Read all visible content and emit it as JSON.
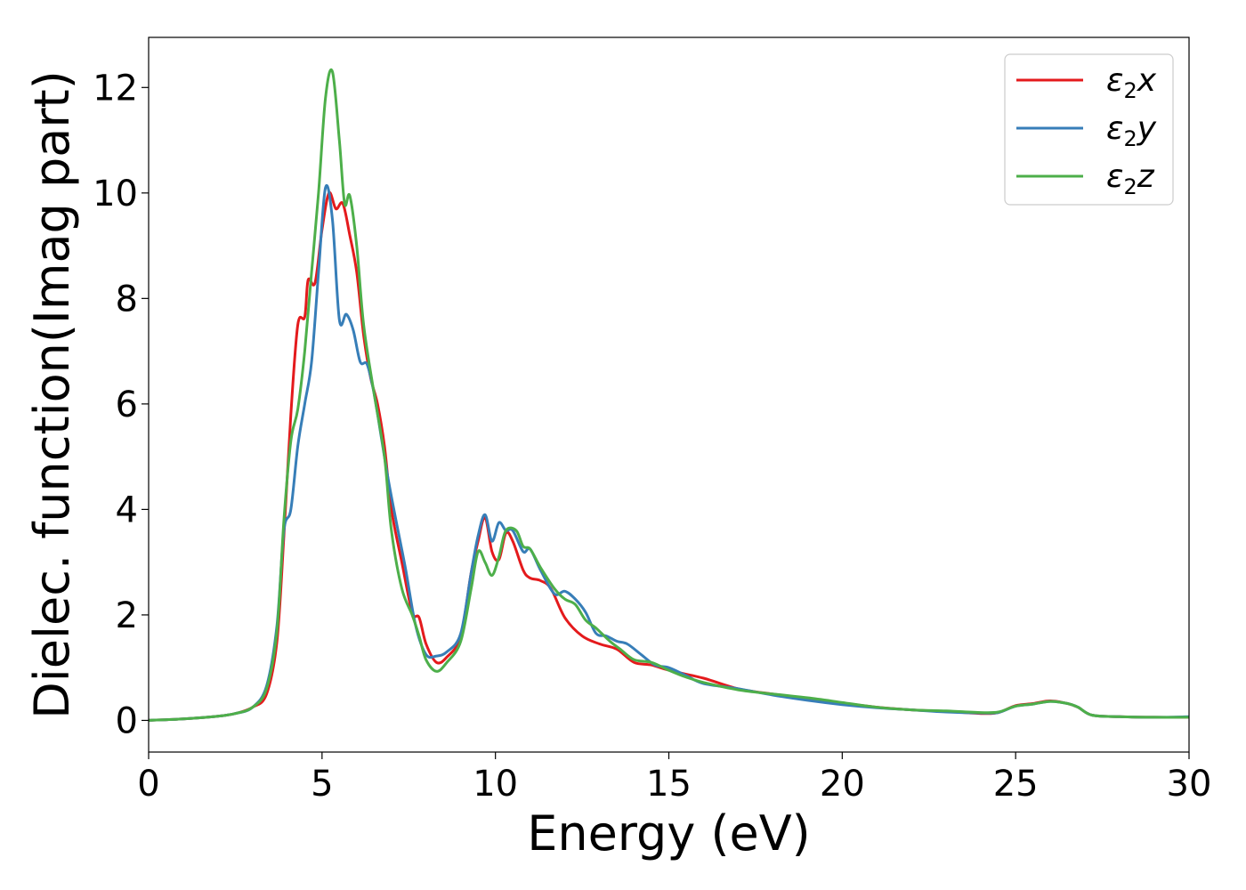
{
  "chart_data": {
    "type": "line",
    "title": "",
    "xlabel": "Energy (eV)",
    "ylabel": "Dielec. function(Imag part)",
    "xlim": [
      0,
      30
    ],
    "ylim": [
      -0.6,
      12.95
    ],
    "xticks": [
      0,
      5,
      10,
      15,
      20,
      25,
      30
    ],
    "xtick_labels": [
      "0",
      "5",
      "10",
      "15",
      "20",
      "25",
      "30"
    ],
    "yticks": [
      0,
      2,
      4,
      6,
      8,
      10,
      12
    ],
    "ytick_labels": [
      "0",
      "2",
      "4",
      "6",
      "8",
      "10",
      "12"
    ],
    "grid": false,
    "legend_position": "top-right",
    "series": [
      {
        "name": "ε₂x",
        "legend_base": "ε",
        "legend_sub": "2",
        "legend_suffix": "x",
        "color": "#e41a1c",
        "points": [
          [
            0,
            0
          ],
          [
            1,
            0.03
          ],
          [
            2,
            0.08
          ],
          [
            2.5,
            0.13
          ],
          [
            3,
            0.25
          ],
          [
            3.4,
            0.5
          ],
          [
            3.7,
            1.5
          ],
          [
            3.9,
            3.5
          ],
          [
            4.1,
            5.8
          ],
          [
            4.3,
            7.5
          ],
          [
            4.5,
            7.65
          ],
          [
            4.6,
            8.35
          ],
          [
            4.8,
            8.3
          ],
          [
            5,
            9.3
          ],
          [
            5.2,
            10.0
          ],
          [
            5.4,
            9.7
          ],
          [
            5.6,
            9.8
          ],
          [
            5.8,
            9.2
          ],
          [
            6,
            8.5
          ],
          [
            6.2,
            7.3
          ],
          [
            6.4,
            6.5
          ],
          [
            6.6,
            6.0
          ],
          [
            6.8,
            5.2
          ],
          [
            7,
            4.0
          ],
          [
            7.3,
            3.0
          ],
          [
            7.6,
            2.05
          ],
          [
            7.8,
            1.95
          ],
          [
            8,
            1.45
          ],
          [
            8.3,
            1.1
          ],
          [
            8.6,
            1.2
          ],
          [
            9,
            1.6
          ],
          [
            9.3,
            2.8
          ],
          [
            9.5,
            3.4
          ],
          [
            9.7,
            3.85
          ],
          [
            9.9,
            3.2
          ],
          [
            10.1,
            3.05
          ],
          [
            10.3,
            3.55
          ],
          [
            10.5,
            3.4
          ],
          [
            10.8,
            2.85
          ],
          [
            11,
            2.7
          ],
          [
            11.3,
            2.65
          ],
          [
            11.6,
            2.5
          ],
          [
            12,
            1.95
          ],
          [
            12.5,
            1.6
          ],
          [
            13,
            1.45
          ],
          [
            13.5,
            1.35
          ],
          [
            14,
            1.1
          ],
          [
            14.5,
            1.05
          ],
          [
            15,
            0.95
          ],
          [
            16,
            0.8
          ],
          [
            17,
            0.6
          ],
          [
            18,
            0.5
          ],
          [
            19,
            0.42
          ],
          [
            20,
            0.33
          ],
          [
            21,
            0.25
          ],
          [
            22,
            0.2
          ],
          [
            23,
            0.17
          ],
          [
            24,
            0.13
          ],
          [
            24.5,
            0.15
          ],
          [
            25,
            0.28
          ],
          [
            25.5,
            0.32
          ],
          [
            26,
            0.37
          ],
          [
            26.5,
            0.32
          ],
          [
            26.8,
            0.25
          ],
          [
            27.2,
            0.1
          ],
          [
            28,
            0.07
          ],
          [
            29,
            0.06
          ],
          [
            30,
            0.06
          ]
        ]
      },
      {
        "name": "ε₂y",
        "legend_base": "ε",
        "legend_sub": "2",
        "legend_suffix": "y",
        "color": "#377eb8",
        "points": [
          [
            0,
            0
          ],
          [
            1,
            0.03
          ],
          [
            2,
            0.08
          ],
          [
            2.5,
            0.13
          ],
          [
            3,
            0.25
          ],
          [
            3.4,
            0.65
          ],
          [
            3.7,
            1.8
          ],
          [
            3.9,
            3.6
          ],
          [
            4.1,
            4.0
          ],
          [
            4.3,
            5.2
          ],
          [
            4.5,
            6.0
          ],
          [
            4.7,
            6.8
          ],
          [
            4.9,
            8.5
          ],
          [
            5.1,
            10.1
          ],
          [
            5.3,
            9.5
          ],
          [
            5.5,
            7.6
          ],
          [
            5.7,
            7.7
          ],
          [
            5.9,
            7.4
          ],
          [
            6.1,
            6.8
          ],
          [
            6.3,
            6.75
          ],
          [
            6.5,
            6.2
          ],
          [
            6.7,
            5.4
          ],
          [
            6.9,
            4.6
          ],
          [
            7.1,
            3.9
          ],
          [
            7.4,
            2.9
          ],
          [
            7.7,
            1.8
          ],
          [
            8,
            1.25
          ],
          [
            8.3,
            1.22
          ],
          [
            8.6,
            1.3
          ],
          [
            9,
            1.65
          ],
          [
            9.3,
            2.8
          ],
          [
            9.5,
            3.5
          ],
          [
            9.7,
            3.9
          ],
          [
            9.9,
            3.4
          ],
          [
            10.1,
            3.75
          ],
          [
            10.3,
            3.6
          ],
          [
            10.5,
            3.6
          ],
          [
            10.8,
            3.2
          ],
          [
            11,
            3.25
          ],
          [
            11.3,
            2.85
          ],
          [
            11.7,
            2.4
          ],
          [
            12,
            2.45
          ],
          [
            12.3,
            2.3
          ],
          [
            12.6,
            2.05
          ],
          [
            12.9,
            1.65
          ],
          [
            13.2,
            1.6
          ],
          [
            13.5,
            1.5
          ],
          [
            13.8,
            1.45
          ],
          [
            14.2,
            1.25
          ],
          [
            14.6,
            1.05
          ],
          [
            15,
            1.0
          ],
          [
            15.5,
            0.85
          ],
          [
            16,
            0.7
          ],
          [
            17,
            0.6
          ],
          [
            18,
            0.48
          ],
          [
            19,
            0.38
          ],
          [
            20,
            0.3
          ],
          [
            21,
            0.24
          ],
          [
            22,
            0.2
          ],
          [
            23,
            0.16
          ],
          [
            24,
            0.14
          ],
          [
            24.5,
            0.15
          ],
          [
            25,
            0.27
          ],
          [
            25.5,
            0.31
          ],
          [
            26,
            0.36
          ],
          [
            26.5,
            0.32
          ],
          [
            26.8,
            0.25
          ],
          [
            27.2,
            0.1
          ],
          [
            28,
            0.07
          ],
          [
            29,
            0.06
          ],
          [
            30,
            0.07
          ]
        ]
      },
      {
        "name": "ε₂z",
        "legend_base": "ε",
        "legend_sub": "2",
        "legend_suffix": "z",
        "color": "#4daf4a",
        "points": [
          [
            0,
            0
          ],
          [
            1,
            0.03
          ],
          [
            2,
            0.08
          ],
          [
            2.5,
            0.13
          ],
          [
            3,
            0.25
          ],
          [
            3.4,
            0.6
          ],
          [
            3.7,
            1.7
          ],
          [
            3.9,
            3.8
          ],
          [
            4.1,
            5.3
          ],
          [
            4.3,
            5.9
          ],
          [
            4.5,
            7.0
          ],
          [
            4.7,
            8.5
          ],
          [
            4.9,
            10.0
          ],
          [
            5.1,
            11.8
          ],
          [
            5.3,
            12.3
          ],
          [
            5.5,
            11.0
          ],
          [
            5.65,
            9.8
          ],
          [
            5.8,
            9.95
          ],
          [
            6,
            9.0
          ],
          [
            6.2,
            7.5
          ],
          [
            6.5,
            6.2
          ],
          [
            6.8,
            5.0
          ],
          [
            7,
            3.6
          ],
          [
            7.3,
            2.5
          ],
          [
            7.6,
            2.0
          ],
          [
            7.8,
            1.6
          ],
          [
            8,
            1.15
          ],
          [
            8.3,
            0.93
          ],
          [
            8.6,
            1.1
          ],
          [
            9,
            1.5
          ],
          [
            9.3,
            2.5
          ],
          [
            9.5,
            3.2
          ],
          [
            9.7,
            3.0
          ],
          [
            9.9,
            2.75
          ],
          [
            10.1,
            3.1
          ],
          [
            10.3,
            3.6
          ],
          [
            10.6,
            3.6
          ],
          [
            10.8,
            3.3
          ],
          [
            11,
            3.25
          ],
          [
            11.3,
            2.9
          ],
          [
            11.7,
            2.5
          ],
          [
            12,
            2.3
          ],
          [
            12.3,
            2.2
          ],
          [
            12.6,
            1.9
          ],
          [
            12.9,
            1.75
          ],
          [
            13.3,
            1.5
          ],
          [
            13.6,
            1.35
          ],
          [
            14,
            1.15
          ],
          [
            14.5,
            1.1
          ],
          [
            15,
            0.95
          ],
          [
            15.5,
            0.82
          ],
          [
            16,
            0.72
          ],
          [
            17,
            0.58
          ],
          [
            18,
            0.5
          ],
          [
            19,
            0.43
          ],
          [
            20,
            0.34
          ],
          [
            21,
            0.25
          ],
          [
            22,
            0.2
          ],
          [
            23,
            0.18
          ],
          [
            24,
            0.15
          ],
          [
            24.5,
            0.16
          ],
          [
            25,
            0.27
          ],
          [
            25.5,
            0.31
          ],
          [
            26,
            0.36
          ],
          [
            26.5,
            0.32
          ],
          [
            26.8,
            0.25
          ],
          [
            27.2,
            0.1
          ],
          [
            28,
            0.07
          ],
          [
            29,
            0.06
          ],
          [
            30,
            0.06
          ]
        ]
      }
    ]
  }
}
